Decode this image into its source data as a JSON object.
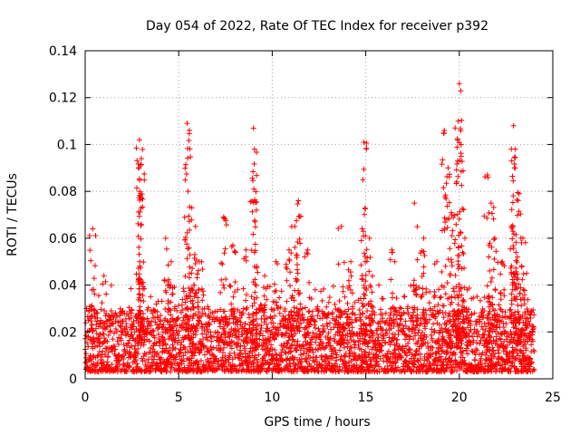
{
  "chart_data": {
    "type": "scatter",
    "title": "Day 054 of 2022, Rate Of TEC Index for receiver p392",
    "xlabel": "GPS time / hours",
    "ylabel": "ROTI / TECUs",
    "xlim": [
      0,
      25
    ],
    "ylim": [
      0,
      0.14
    ],
    "x_ticks": [
      0,
      5,
      10,
      15,
      20,
      25
    ],
    "x_tick_labels": [
      "0",
      "5",
      "10",
      "15",
      "20",
      "25"
    ],
    "y_ticks": [
      0,
      0.02,
      0.04,
      0.06,
      0.08,
      0.1,
      0.12,
      0.14
    ],
    "y_tick_labels": [
      "0",
      "0.02",
      "0.04",
      "0.06",
      "0.08",
      "0.1",
      "0.12",
      "0.14"
    ],
    "grid": true,
    "marker": "plus",
    "color": "#ff0000",
    "series": [
      {
        "name": "p392",
        "base_range": [
          0.003,
          0.03
        ],
        "peaks": [
          {
            "x": 0.4,
            "y": 0.064
          },
          {
            "x": 1.0,
            "y": 0.044
          },
          {
            "x": 2.9,
            "y": 0.102
          },
          {
            "x": 3.0,
            "y": 0.094
          },
          {
            "x": 2.95,
            "y": 0.079
          },
          {
            "x": 3.0,
            "y": 0.066
          },
          {
            "x": 4.3,
            "y": 0.06
          },
          {
            "x": 4.6,
            "y": 0.05
          },
          {
            "x": 5.45,
            "y": 0.109
          },
          {
            "x": 5.5,
            "y": 0.08
          },
          {
            "x": 5.7,
            "y": 0.073
          },
          {
            "x": 5.9,
            "y": 0.065
          },
          {
            "x": 6.1,
            "y": 0.05
          },
          {
            "x": 7.4,
            "y": 0.069
          },
          {
            "x": 7.9,
            "y": 0.057
          },
          {
            "x": 8.6,
            "y": 0.055
          },
          {
            "x": 9.0,
            "y": 0.107
          },
          {
            "x": 9.05,
            "y": 0.098
          },
          {
            "x": 9.6,
            "y": 0.044
          },
          {
            "x": 10.2,
            "y": 0.05
          },
          {
            "x": 10.9,
            "y": 0.055
          },
          {
            "x": 11.4,
            "y": 0.076
          },
          {
            "x": 11.2,
            "y": 0.065
          },
          {
            "x": 11.9,
            "y": 0.055
          },
          {
            "x": 13.7,
            "y": 0.065
          },
          {
            "x": 14.2,
            "y": 0.05
          },
          {
            "x": 14.9,
            "y": 0.101
          },
          {
            "x": 14.85,
            "y": 0.085
          },
          {
            "x": 15.2,
            "y": 0.06
          },
          {
            "x": 16.4,
            "y": 0.055
          },
          {
            "x": 17.6,
            "y": 0.075
          },
          {
            "x": 18.1,
            "y": 0.06
          },
          {
            "x": 18.8,
            "y": 0.05
          },
          {
            "x": 19.2,
            "y": 0.106
          },
          {
            "x": 19.4,
            "y": 0.09
          },
          {
            "x": 19.6,
            "y": 0.07
          },
          {
            "x": 20.0,
            "y": 0.126
          },
          {
            "x": 19.95,
            "y": 0.11
          },
          {
            "x": 20.1,
            "y": 0.095
          },
          {
            "x": 20.3,
            "y": 0.06
          },
          {
            "x": 21.5,
            "y": 0.087
          },
          {
            "x": 21.7,
            "y": 0.075
          },
          {
            "x": 21.9,
            "y": 0.06
          },
          {
            "x": 22.3,
            "y": 0.05
          },
          {
            "x": 22.9,
            "y": 0.108
          },
          {
            "x": 23.0,
            "y": 0.098
          },
          {
            "x": 22.95,
            "y": 0.09
          },
          {
            "x": 23.2,
            "y": 0.079
          },
          {
            "x": 23.4,
            "y": 0.06
          },
          {
            "x": 23.6,
            "y": 0.045
          }
        ]
      }
    ]
  }
}
